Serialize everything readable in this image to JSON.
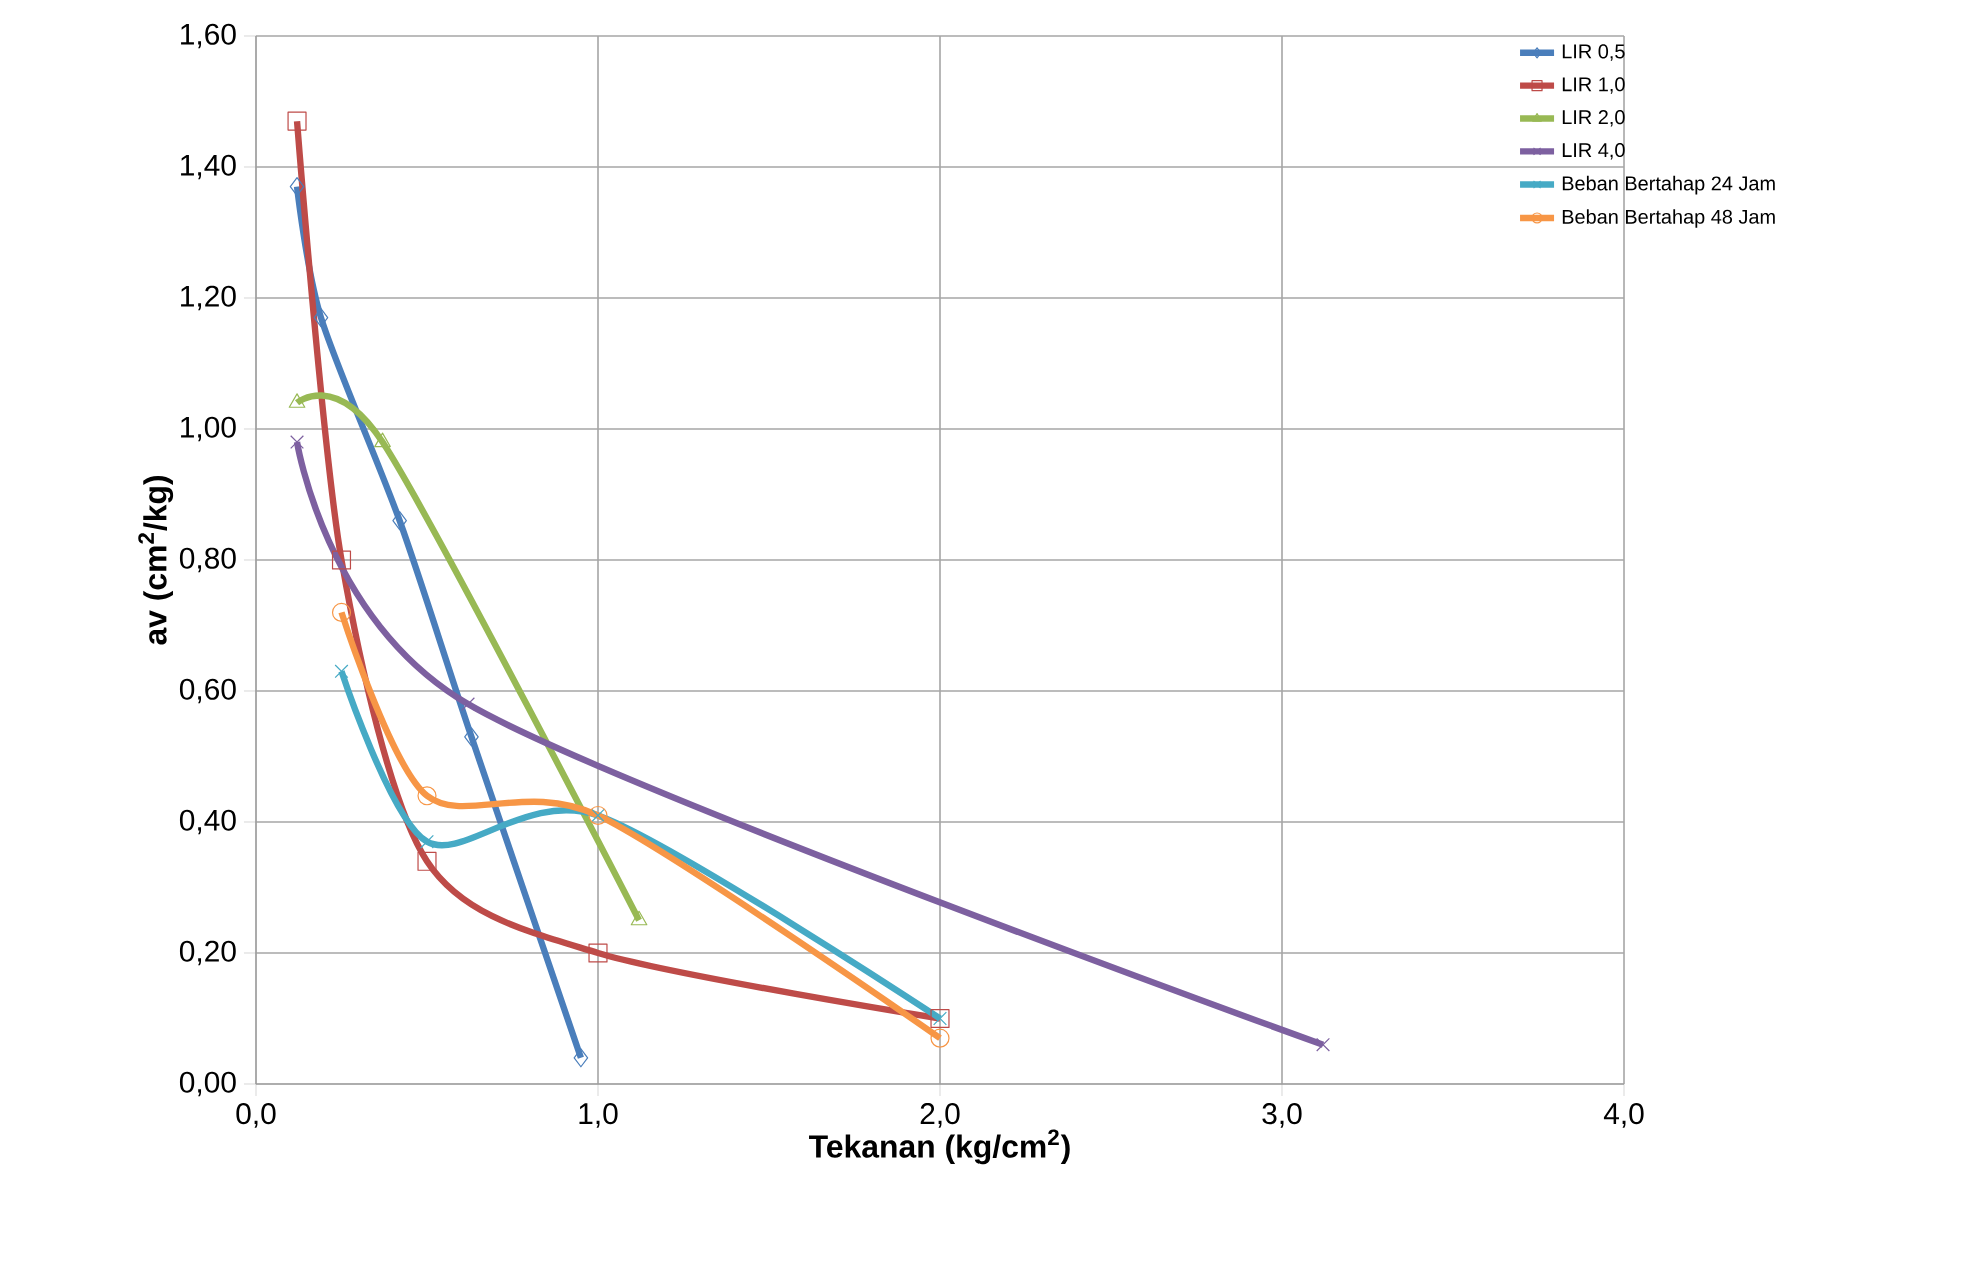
{
  "chart_data": {
    "type": "line",
    "xlabel": "Tekanan (kg/cm$^{2}$)",
    "ylabel": "av (cm$^{2}$/kg)",
    "xlim": [
      0,
      4
    ],
    "ylim": [
      0,
      1.6
    ],
    "xticks": [
      {
        "value": 0,
        "label": "0,0"
      },
      {
        "value": 1,
        "label": "1,0"
      },
      {
        "value": 2,
        "label": "2,0"
      },
      {
        "value": 3,
        "label": "3,0"
      },
      {
        "value": 4,
        "label": "4,0"
      }
    ],
    "yticks": [
      {
        "value": 0,
        "label": "0,00"
      },
      {
        "value": 0.2,
        "label": "0,20"
      },
      {
        "value": 0.4,
        "label": "0,40"
      },
      {
        "value": 0.6,
        "label": "0,60"
      },
      {
        "value": 0.8,
        "label": "0,80"
      },
      {
        "value": 1.0,
        "label": "1,00"
      },
      {
        "value": 1.2,
        "label": "1,20"
      },
      {
        "value": 1.4,
        "label": "1,40"
      },
      {
        "value": 1.6,
        "label": "1,60"
      }
    ],
    "grid": true,
    "legend": "top right",
    "series": [
      {
        "name": "LIR 0,5",
        "color": "#4a7ebb",
        "marker": "diamond",
        "x": [
          0.12,
          0.19,
          0.42,
          0.63,
          0.95
        ],
        "values": [
          1.37,
          1.17,
          0.86,
          0.53,
          0.04
        ]
      },
      {
        "name": "LIR 1,0",
        "color": "#be4b48",
        "marker": "square",
        "x": [
          0.12,
          0.25,
          0.5,
          1.0,
          2.0
        ],
        "values": [
          1.47,
          0.8,
          0.34,
          0.2,
          0.1
        ]
      },
      {
        "name": "LIR 2,0",
        "color": "#98b954",
        "marker": "triangle",
        "x": [
          0.12,
          0.37,
          1.12
        ],
        "values": [
          1.04,
          0.98,
          0.25
        ]
      },
      {
        "name": "LIR 4,0",
        "color": "#7d60a0",
        "marker": "cross",
        "x": [
          0.12,
          0.62,
          3.12
        ],
        "values": [
          0.98,
          0.58,
          0.06
        ]
      },
      {
        "name": "Beban Bertahap 24 Jam",
        "color": "#46aac5",
        "marker": "cross",
        "x": [
          0.25,
          0.5,
          1.0,
          2.0
        ],
        "values": [
          0.63,
          0.37,
          0.41,
          0.1
        ]
      },
      {
        "name": "Beban Bertahap 48 Jam",
        "color": "#f79646",
        "marker": "circle",
        "x": [
          0.25,
          0.5,
          1.0,
          2.0
        ],
        "values": [
          0.72,
          0.44,
          0.41,
          0.07
        ]
      }
    ]
  }
}
